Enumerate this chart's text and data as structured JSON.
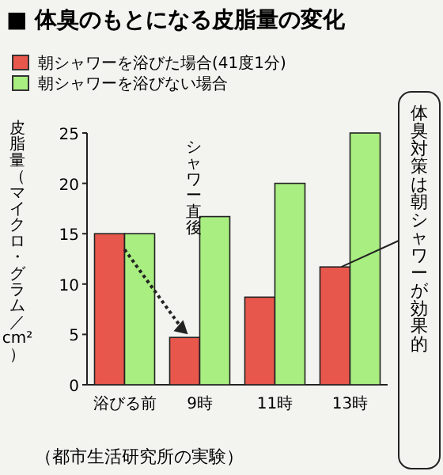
{
  "chart_data": {
    "type": "bar",
    "title": "■ 体臭のもとになる皮脂量の変化",
    "ylabel": "皮脂量（マイクロ・グラム／cm²）",
    "categories": [
      "浴びる前",
      "9時",
      "11時",
      "13時"
    ],
    "series": [
      {
        "name": "朝シャワーを浴びた場合(41度1分)",
        "color": "#e8574c",
        "values": [
          15,
          4.7,
          8.7,
          11.7
        ]
      },
      {
        "name": "朝シャワーを浴びない場合",
        "color": "#a8ee80",
        "values": [
          15,
          16.7,
          20,
          25
        ]
      }
    ],
    "ylim": [
      0,
      25
    ],
    "yticks": [
      0,
      5,
      10,
      15,
      20,
      25
    ],
    "grid": false,
    "legend": "top left",
    "annotations": [
      "シャワー直後",
      "体臭対策は朝シャワーが効果的",
      "（都市生活研究所の実験）"
    ]
  }
}
